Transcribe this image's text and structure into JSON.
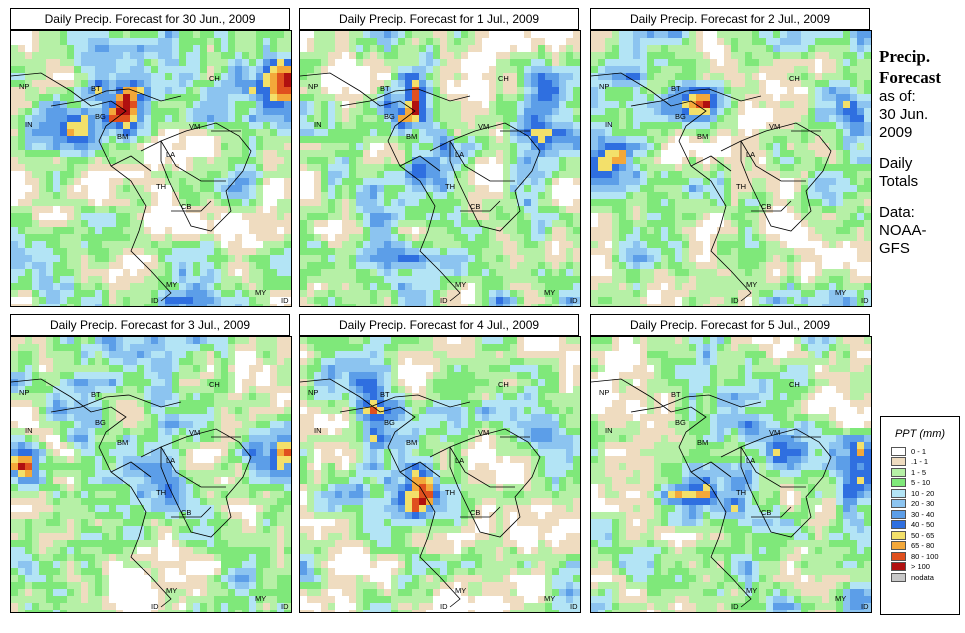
{
  "panels": [
    {
      "title": "Daily Precip. Forecast for  30 Jun., 2009",
      "variant": 0
    },
    {
      "title": "Daily Precip. Forecast for  1 Jul., 2009",
      "variant": 1
    },
    {
      "title": "Daily Precip. Forecast for  2 Jul., 2009",
      "variant": 2
    },
    {
      "title": "Daily Precip. Forecast for  3 Jul., 2009",
      "variant": 3
    },
    {
      "title": "Daily Precip. Forecast for  4 Jul., 2009",
      "variant": 4
    },
    {
      "title": "Daily Precip. Forecast for  5 Jul., 2009",
      "variant": 5
    }
  ],
  "map_labels": [
    "NP",
    "BT",
    "BG",
    "IN",
    "BM",
    "CH",
    "VM",
    "LA",
    "TH",
    "CB",
    "MY",
    "ID",
    "MY",
    "ID"
  ],
  "sidebar": {
    "heading1": "Precip.",
    "heading2": "Forecast",
    "asof": "as of:",
    "date1": "30 Jun.",
    "date2": "2009",
    "daily": "Daily",
    "totals": "Totals",
    "data_label": "Data:",
    "source1": "NOAA-",
    "source2": "GFS"
  },
  "legend": {
    "title": "PPT (mm)",
    "items": [
      {
        "label": "0 - 1",
        "color": "#ffffff"
      },
      {
        "label": ".1 - 1",
        "color": "#efdcc0"
      },
      {
        "label": "1 - 5",
        "color": "#b6f0a6"
      },
      {
        "label": "5 - 10",
        "color": "#7fe87a"
      },
      {
        "label": "10 - 20",
        "color": "#b3e4f5"
      },
      {
        "label": "20 - 30",
        "color": "#8cc4f0"
      },
      {
        "label": "30 - 40",
        "color": "#5c9ee8"
      },
      {
        "label": "40 - 50",
        "color": "#2f6fe0"
      },
      {
        "label": "50 - 65",
        "color": "#f3e06a"
      },
      {
        "label": "65 - 80",
        "color": "#f3a83a"
      },
      {
        "label": "80 - 100",
        "color": "#e0501e"
      },
      {
        "label": "> 100",
        "color": "#b01010"
      },
      {
        "label": "nodata",
        "color": "#c8c8c8"
      }
    ]
  }
}
